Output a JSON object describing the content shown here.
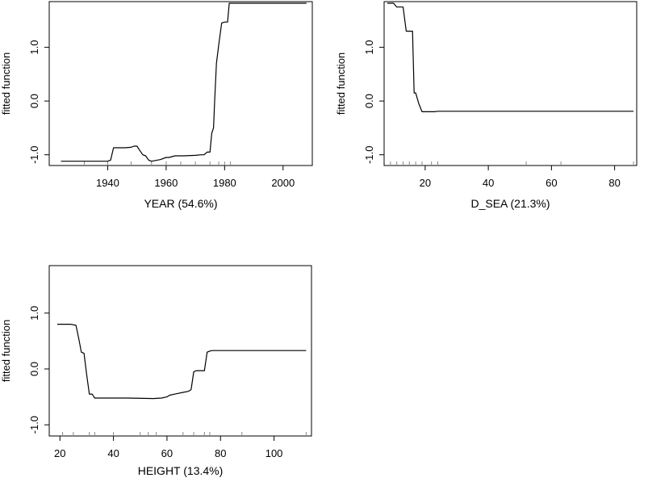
{
  "chart_data": [
    {
      "type": "line",
      "xlabel": "YEAR (54.6%)",
      "ylabel": "fitted function",
      "xlim": [
        1920,
        2010
      ],
      "ylim": [
        -1.2,
        1.85
      ],
      "xticks": [
        1940,
        1960,
        1980,
        2000
      ],
      "yticks": [
        -1.0,
        0.0,
        1.0
      ],
      "ytick_labels": [
        "-1.0",
        "0.0",
        "1.0"
      ],
      "rug": [
        1932,
        1940,
        1948,
        1955,
        1960,
        1965,
        1970,
        1975,
        1978,
        1980,
        1982
      ],
      "series": [
        {
          "x": [
            1924,
            1940,
            1941,
            1942,
            1946,
            1948,
            1949,
            1950,
            1951,
            1952,
            1953,
            1954,
            1955,
            1957,
            1958,
            1960,
            1961,
            1963,
            1966,
            1970,
            1972,
            1973,
            1974,
            1975,
            1975.6,
            1976.2,
            1976.6,
            1977.2,
            1978,
            1979,
            1980,
            1981,
            1981.6,
            2008
          ],
          "y": [
            -1.12,
            -1.12,
            -1.1,
            -0.87,
            -0.87,
            -0.86,
            -0.84,
            -0.84,
            -0.92,
            -1.0,
            -1.02,
            -1.1,
            -1.12,
            -1.1,
            -1.09,
            -1.05,
            -1.05,
            -1.02,
            -1.02,
            -1.01,
            -1.0,
            -1.0,
            -0.95,
            -0.95,
            -0.6,
            -0.5,
            0.0,
            0.7,
            1.05,
            1.45,
            1.47,
            1.47,
            1.82,
            1.82
          ]
        }
      ]
    },
    {
      "type": "line",
      "xlabel": "D_SEA (21.3%)",
      "ylabel": "fitted function",
      "xlim": [
        7,
        87
      ],
      "ylim": [
        -1.2,
        1.85
      ],
      "xticks": [
        20,
        40,
        60,
        80
      ],
      "yticks": [
        -1.0,
        0.0,
        1.0
      ],
      "ytick_labels": [
        "-1.0",
        "0.0",
        "1.0"
      ],
      "rug": [
        9,
        11,
        13,
        15,
        17,
        19,
        22,
        24,
        52,
        63,
        86
      ],
      "series": [
        {
          "x": [
            8,
            10,
            11,
            13,
            14,
            16,
            16.5,
            17,
            18,
            19,
            21,
            23,
            24,
            86
          ],
          "y": [
            1.82,
            1.82,
            1.75,
            1.75,
            1.3,
            1.3,
            0.15,
            0.15,
            -0.05,
            -0.2,
            -0.2,
            -0.2,
            -0.19,
            -0.19
          ]
        }
      ]
    },
    {
      "type": "line",
      "xlabel": "HEIGHT (13.4%)",
      "ylabel": "fitted function",
      "xlim": [
        16,
        114
      ],
      "ylim": [
        -1.2,
        1.85
      ],
      "xticks": [
        20,
        40,
        60,
        80,
        100
      ],
      "yticks": [
        -1.0,
        0.0,
        1.0
      ],
      "ytick_labels": [
        "-1.0",
        "0.0",
        "1.0"
      ],
      "rug": [
        21,
        25,
        31,
        33,
        40,
        50,
        53,
        56,
        66,
        70,
        74,
        76,
        88,
        112
      ],
      "series": [
        {
          "x": [
            19,
            24,
            26,
            27,
            28,
            29,
            30,
            31,
            32,
            33,
            40,
            45,
            55,
            58,
            60,
            61,
            63,
            66,
            68,
            69,
            70,
            71,
            74,
            75,
            76,
            77,
            112
          ],
          "y": [
            0.8,
            0.8,
            0.78,
            0.55,
            0.3,
            0.28,
            -0.1,
            -0.45,
            -0.45,
            -0.52,
            -0.52,
            -0.52,
            -0.53,
            -0.52,
            -0.5,
            -0.47,
            -0.45,
            -0.42,
            -0.4,
            -0.37,
            -0.05,
            -0.03,
            -0.03,
            0.3,
            0.32,
            0.33,
            0.33
          ]
        }
      ]
    }
  ]
}
